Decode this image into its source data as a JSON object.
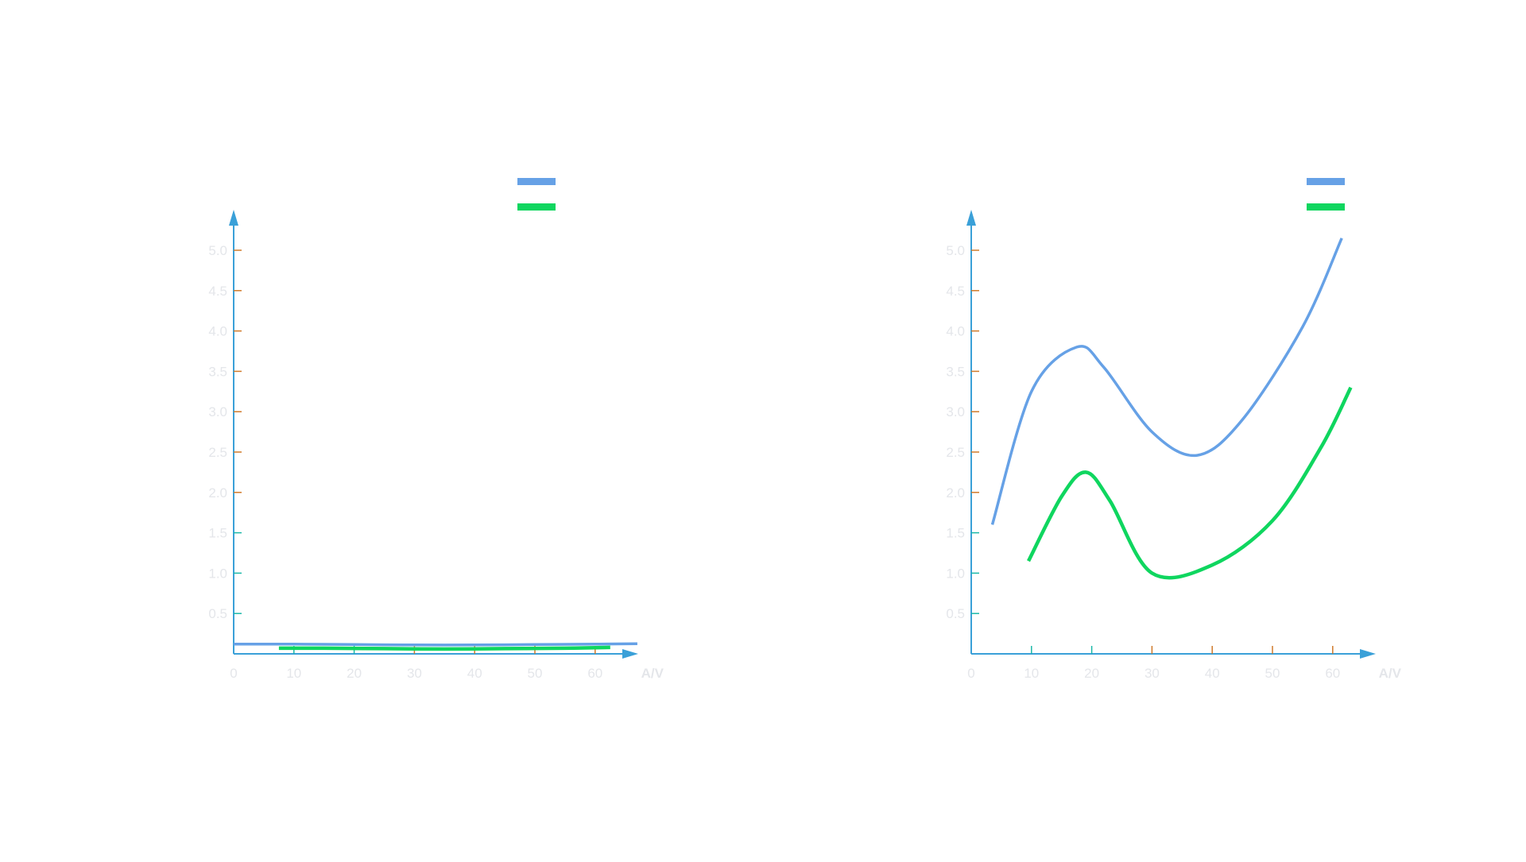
{
  "colors": {
    "axis": "#3aa0d8",
    "tick": "#d07a2a",
    "tick_low": "#1ab8a8",
    "label": "#e4e6ea",
    "series_blue": "#66a1e6",
    "series_green": "#0fd65f"
  },
  "chart_data": [
    {
      "type": "line",
      "title": "",
      "xlabel": "A/V",
      "ylabel": "",
      "xlim": [
        0,
        66
      ],
      "ylim": [
        0,
        5.5
      ],
      "x_ticks": [
        "0",
        "10",
        "20",
        "30",
        "40",
        "50",
        "60"
      ],
      "y_ticks": [
        "0.5",
        "1.0",
        "1.5",
        "2.0",
        "2.5",
        "3.0",
        "3.5",
        "4.0",
        "4.5",
        "5.0"
      ],
      "grid": false,
      "legend": "top-right",
      "series": [
        {
          "color": "#66a1e6",
          "x": [
            0,
            10,
            20,
            30,
            40,
            50,
            60,
            67
          ],
          "y": [
            0.12,
            0.12,
            0.115,
            0.11,
            0.11,
            0.115,
            0.12,
            0.125
          ]
        },
        {
          "color": "#0fd65f",
          "x": [
            7.5,
            15,
            25,
            35,
            45,
            55,
            62.5
          ],
          "y": [
            0.07,
            0.07,
            0.065,
            0.06,
            0.065,
            0.07,
            0.08
          ]
        }
      ]
    },
    {
      "type": "line",
      "title": "",
      "xlabel": "A/V",
      "ylabel": "",
      "xlim": [
        0,
        66
      ],
      "ylim": [
        0,
        5.5
      ],
      "x_ticks": [
        "0",
        "10",
        "20",
        "30",
        "40",
        "50",
        "60"
      ],
      "y_ticks": [
        "0.5",
        "1.0",
        "1.5",
        "2.0",
        "2.5",
        "3.0",
        "3.5",
        "4.0",
        "4.5",
        "5.0"
      ],
      "grid": false,
      "legend": "top-right",
      "series": [
        {
          "color": "#66a1e6",
          "x": [
            3.5,
            10,
            17.5,
            22,
            30,
            37.5,
            45,
            55,
            61.5
          ],
          "y": [
            1.6,
            3.25,
            3.8,
            3.55,
            2.75,
            2.46,
            2.9,
            4.05,
            5.15
          ]
        },
        {
          "color": "#0fd65f",
          "x": [
            9.5,
            15,
            19,
            23,
            30,
            40,
            50,
            58,
            63
          ],
          "y": [
            1.15,
            1.95,
            2.25,
            1.9,
            1.0,
            1.1,
            1.65,
            2.55,
            3.3
          ]
        }
      ]
    }
  ]
}
